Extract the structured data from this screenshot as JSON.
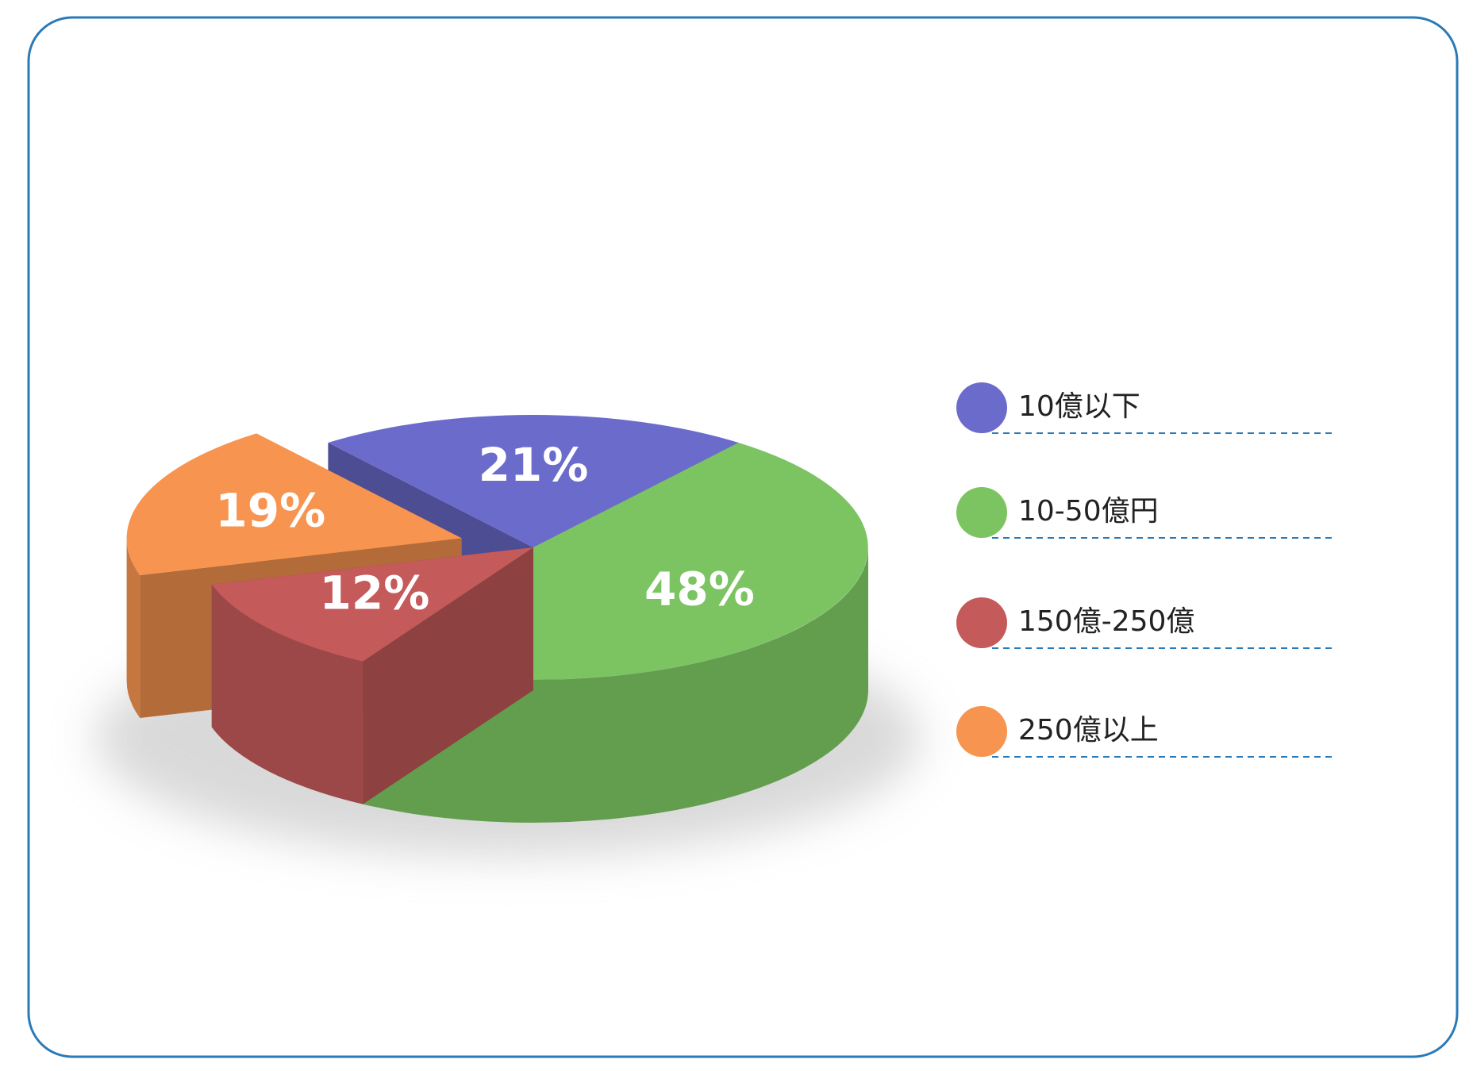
{
  "chart_data": {
    "type": "pie3d",
    "categories": [
      "10億以下",
      "10-50億円",
      "150億-250億",
      "250億以上"
    ],
    "values": [
      21,
      48,
      12,
      19
    ],
    "value_labels": [
      "21%",
      "48%",
      "12%",
      "19%"
    ],
    "colors": [
      "#6b6bcc",
      "#7cc462",
      "#c45a5a",
      "#f7944f"
    ]
  }
}
